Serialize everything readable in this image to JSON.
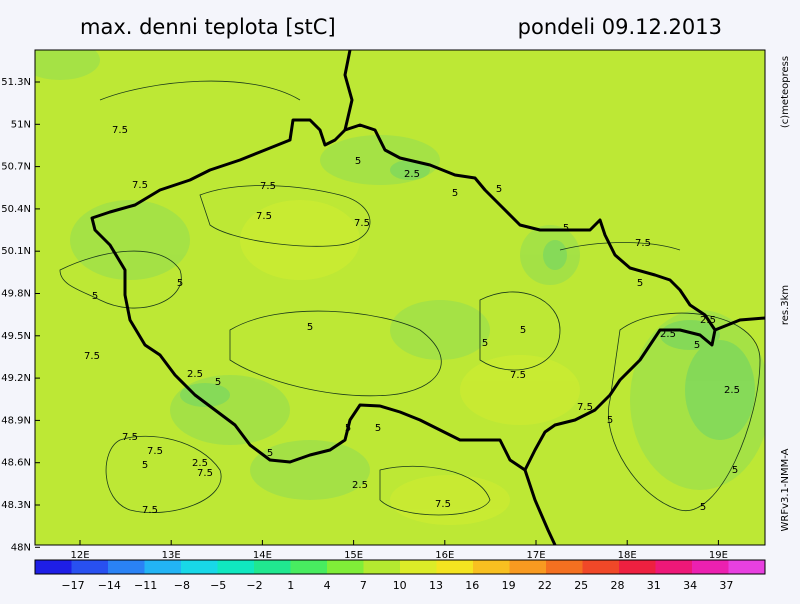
{
  "header": {
    "title": "max. denni teplota [stC]",
    "date": "pondeli 09.12.2013"
  },
  "lat_labels": [
    "51.3N",
    "51N",
    "50.7N",
    "50.4N",
    "50.1N",
    "49.8N",
    "49.5N",
    "49.2N",
    "48.9N",
    "48.6N",
    "48.3N",
    "48N"
  ],
  "lon_labels": [
    "12E",
    "13E",
    "14E",
    "15E",
    "16E",
    "17E",
    "18E",
    "19E"
  ],
  "colorbar": {
    "labels": [
      "−17",
      "−14",
      "−11",
      "−8",
      "−5",
      "−2",
      "1",
      "4",
      "7",
      "10",
      "13",
      "16",
      "19",
      "22",
      "25",
      "28",
      "31",
      "34",
      "37"
    ],
    "colors": [
      "#1e1ee6",
      "#2850f0",
      "#2a82f5",
      "#22b4f5",
      "#18d8e8",
      "#10e8c0",
      "#20e890",
      "#48ec60",
      "#80ee38",
      "#b4ea30",
      "#dcec28",
      "#f4e420",
      "#f8c020",
      "#f89a20",
      "#f47020",
      "#f04828",
      "#ee2040",
      "#ee1878",
      "#ec20b0",
      "#e840e0"
    ]
  },
  "side": {
    "copyright": "(c)meteopress",
    "resolution": "res.3km",
    "model": "WRFv3.1-NMM-A"
  },
  "contour_labels": [
    "7.5",
    "7.5",
    "7.5",
    "7.5",
    "7.5",
    "5",
    "2.5",
    "5",
    "5",
    "5",
    "7.5",
    "5",
    "5",
    "5",
    "5",
    "5",
    "5",
    "7.5",
    "2.5",
    "5",
    "7.5",
    "2.5",
    "2.5",
    "5",
    "2.5",
    "7.5",
    "7.5",
    "7.5",
    "5",
    "2.5",
    "7.5",
    "5",
    "5",
    "5",
    "2.5",
    "7.5",
    "7.5",
    "5",
    "5",
    "5"
  ]
}
